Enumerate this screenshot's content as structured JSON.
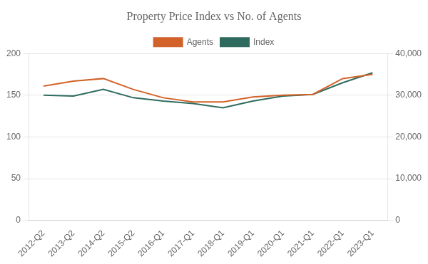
{
  "chart_data": {
    "type": "line",
    "title": "Property Price Index vs No. of Agents",
    "categories": [
      "2012-Q2",
      "2013-Q2",
      "2014-Q2",
      "2015-Q2",
      "2016-Q1",
      "2017-Q1",
      "2018-Q1",
      "2019-Q1",
      "2020-Q1",
      "2021-Q1",
      "2022-Q1",
      "2023-Q1"
    ],
    "series": [
      {
        "name": "Agents",
        "color": "#D2622A",
        "values": [
          161,
          167,
          170,
          157,
          147,
          142,
          142,
          148,
          150,
          151,
          170,
          175
        ]
      },
      {
        "name": "Index",
        "color": "#2E6B5E",
        "values": [
          150,
          149,
          157,
          147,
          143,
          140,
          135,
          143,
          149,
          151,
          165,
          177
        ]
      }
    ],
    "ylim": [
      0,
      200
    ],
    "yticks": [
      0,
      50,
      100,
      150,
      200
    ],
    "y2lim": [
      0,
      40000
    ],
    "y2ticks": [
      {
        "value": 0,
        "label": "0"
      },
      {
        "value": 10000,
        "label": "10,000"
      },
      {
        "value": 20000,
        "label": "20,000"
      },
      {
        "value": 30000,
        "label": "30,000"
      },
      {
        "value": 40000,
        "label": "40,000"
      }
    ],
    "grid": true,
    "legend": "top"
  }
}
